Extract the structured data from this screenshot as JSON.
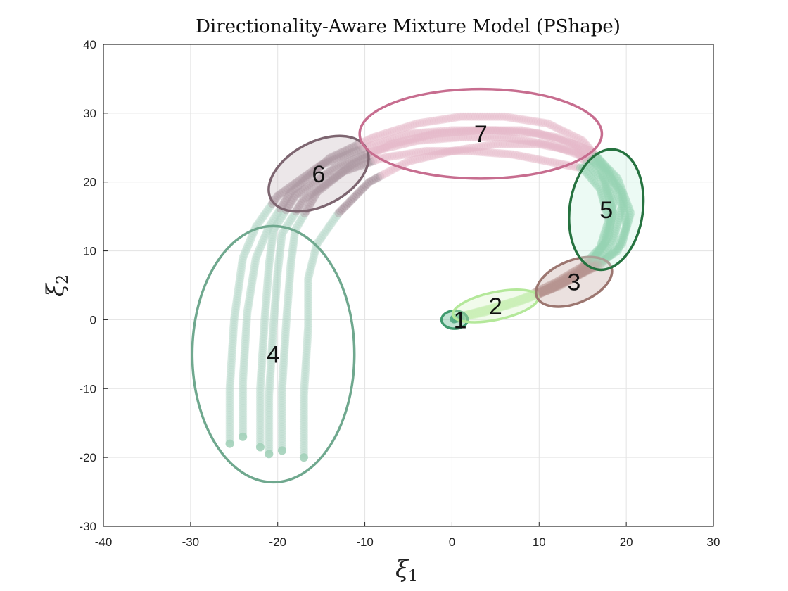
{
  "chart_data": {
    "type": "scatter",
    "title": "Directionality-Aware Mixture Model (PShape)",
    "xlabel": {
      "symbol": "ξ",
      "sub": "1"
    },
    "ylabel": {
      "symbol": "ξ",
      "sub": "2"
    },
    "xlim": [
      -40,
      30
    ],
    "ylim": [
      -30,
      40
    ],
    "xticks": [
      "-40",
      "-30",
      "-20",
      "-10",
      "0",
      "10",
      "20",
      "30"
    ],
    "yticks": [
      "-30",
      "-20",
      "-10",
      "0",
      "10",
      "20",
      "30",
      "40"
    ],
    "grid": true,
    "trajectories": [
      [
        [
          -25.5,
          -18
        ],
        [
          -25.5,
          -10
        ],
        [
          -25,
          0
        ],
        [
          -24,
          9
        ],
        [
          -22.5,
          13.5
        ],
        [
          -20,
          18
        ],
        [
          -15,
          22.5
        ],
        [
          -10,
          25
        ],
        [
          -5,
          27
        ],
        [
          0,
          27.5
        ],
        [
          5,
          27.5
        ],
        [
          10,
          27
        ],
        [
          14,
          25.5
        ],
        [
          17,
          22
        ],
        [
          18.5,
          17
        ],
        [
          18,
          12
        ],
        [
          16,
          8.5
        ],
        [
          12,
          5.5
        ],
        [
          8,
          3
        ],
        [
          4,
          1.5
        ],
        [
          1,
          0.5
        ],
        [
          0,
          0
        ]
      ],
      [
        [
          -24,
          -17
        ],
        [
          -24,
          -9
        ],
        [
          -23.5,
          1
        ],
        [
          -22.5,
          9
        ],
        [
          -21,
          13.5
        ],
        [
          -18.5,
          18.5
        ],
        [
          -14,
          23.5
        ],
        [
          -9,
          26.5
        ],
        [
          -4,
          28.5
        ],
        [
          1,
          29.5
        ],
        [
          6,
          29.5
        ],
        [
          11,
          28.5
        ],
        [
          15,
          26
        ],
        [
          18,
          21.5
        ],
        [
          19.5,
          16.5
        ],
        [
          18.5,
          11.5
        ],
        [
          16.5,
          8
        ],
        [
          12.5,
          5
        ],
        [
          8.5,
          3
        ],
        [
          4.5,
          1.5
        ],
        [
          1,
          0.5
        ],
        [
          0,
          0
        ]
      ],
      [
        [
          -22,
          -18.5
        ],
        [
          -22,
          -10
        ],
        [
          -21.5,
          0
        ],
        [
          -21,
          8
        ],
        [
          -20.5,
          13
        ],
        [
          -18,
          18
        ],
        [
          -13.5,
          22
        ],
        [
          -9,
          24.5
        ],
        [
          -4,
          26
        ],
        [
          1,
          26.5
        ],
        [
          6,
          26.5
        ],
        [
          11,
          25.5
        ],
        [
          14.5,
          24
        ],
        [
          17.5,
          20
        ],
        [
          18.5,
          15.5
        ],
        [
          17.5,
          11
        ],
        [
          15.5,
          7.5
        ],
        [
          11.5,
          4.5
        ],
        [
          7.5,
          2.5
        ],
        [
          4,
          1.2
        ],
        [
          1,
          0.4
        ],
        [
          0,
          0
        ]
      ],
      [
        [
          -21,
          -19.5
        ],
        [
          -21,
          -11
        ],
        [
          -20.5,
          -1
        ],
        [
          -20,
          7
        ],
        [
          -19.5,
          12.5
        ],
        [
          -17,
          17.5
        ],
        [
          -12.5,
          21.5
        ],
        [
          -8,
          23.5
        ],
        [
          -3,
          24.5
        ],
        [
          2,
          24.5
        ],
        [
          7,
          24
        ],
        [
          11,
          23
        ],
        [
          15,
          22
        ],
        [
          17,
          19
        ],
        [
          18,
          14.5
        ],
        [
          17,
          10.5
        ],
        [
          14.5,
          7
        ],
        [
          10.5,
          4.2
        ],
        [
          6.5,
          2.2
        ],
        [
          3.5,
          1
        ],
        [
          1,
          0.3
        ],
        [
          0,
          0
        ]
      ],
      [
        [
          -19.5,
          -19
        ],
        [
          -19.5,
          -10
        ],
        [
          -19,
          0
        ],
        [
          -18.5,
          8
        ],
        [
          -18,
          13
        ],
        [
          -15.5,
          18.5
        ],
        [
          -11.5,
          22.5
        ],
        [
          -7,
          25.5
        ],
        [
          -2,
          27
        ],
        [
          3,
          27.5
        ],
        [
          8,
          27.5
        ],
        [
          12,
          26.5
        ],
        [
          16,
          24.5
        ],
        [
          19,
          20.5
        ],
        [
          20.5,
          15.5
        ],
        [
          19.5,
          11
        ],
        [
          17,
          8
        ],
        [
          13,
          5.5
        ],
        [
          9,
          3.3
        ],
        [
          5,
          1.8
        ],
        [
          1.5,
          0.6
        ],
        [
          0,
          0
        ]
      ],
      [
        [
          -17,
          -20
        ],
        [
          -17,
          -11
        ],
        [
          -16.5,
          -1
        ],
        [
          -16.5,
          6
        ],
        [
          -15.5,
          11
        ],
        [
          -13,
          15.5
        ],
        [
          -9.5,
          20
        ],
        [
          -5,
          23
        ],
        [
          0,
          24.5
        ],
        [
          5,
          25.5
        ],
        [
          10,
          25.5
        ],
        [
          14,
          24.5
        ],
        [
          17,
          22.5
        ],
        [
          19.5,
          18.5
        ],
        [
          20,
          13.5
        ],
        [
          19,
          10
        ],
        [
          16,
          7.5
        ],
        [
          12,
          5
        ],
        [
          8,
          3
        ],
        [
          4.5,
          1.5
        ],
        [
          1.2,
          0.5
        ],
        [
          0,
          0
        ]
      ]
    ],
    "clusters": [
      {
        "label": "1",
        "center": [
          0.3,
          0
        ],
        "semi_axes": [
          1.5,
          1.3
        ],
        "angle_deg": 0,
        "color": "#3f9a6e",
        "fill": "#4caf80"
      },
      {
        "label": "2",
        "center": [
          5,
          2
        ],
        "semi_axes": [
          5,
          2
        ],
        "angle_deg": 12,
        "color": "#b4e89a",
        "fill": "#d6f3c6"
      },
      {
        "label": "3",
        "center": [
          14,
          5.5
        ],
        "semi_axes": [
          4.6,
          3.1
        ],
        "angle_deg": 22,
        "color": "#9c7670",
        "fill": "#c7aaa4"
      },
      {
        "label": "4",
        "center": [
          -20.5,
          -5
        ],
        "semi_axes": [
          9.3,
          18.6
        ],
        "angle_deg": 0,
        "color": "#6fa88e",
        "fill": "none"
      },
      {
        "label": "5",
        "center": [
          17.7,
          16
        ],
        "semi_axes": [
          4.2,
          8.8
        ],
        "angle_deg": -8,
        "color": "#25723f",
        "fill": "#c8f2e0"
      },
      {
        "label": "6",
        "center": [
          -15.3,
          21.2
        ],
        "semi_axes": [
          6.2,
          4.6
        ],
        "angle_deg": 28,
        "color": "#7d6570",
        "fill": "#c9b9c0"
      },
      {
        "label": "7",
        "center": [
          3.3,
          27
        ],
        "semi_axes": [
          13.9,
          6.5
        ],
        "angle_deg": 0,
        "color": "#c76d8f",
        "fill": "none"
      }
    ]
  }
}
